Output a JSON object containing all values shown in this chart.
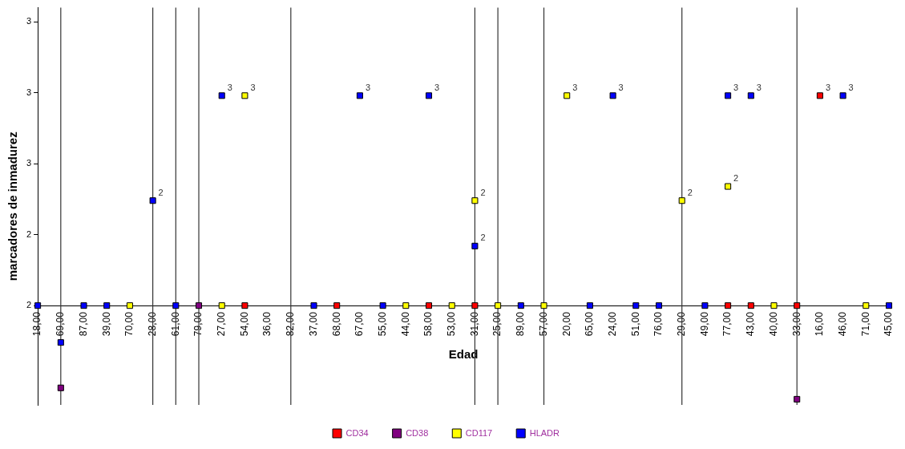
{
  "chart_data": {
    "type": "scatter",
    "xlabel": "Edad",
    "ylabel": "marcadores de inmadurez",
    "categories": [
      "18,00",
      "69,00",
      "87,00",
      "39,00",
      "70,00",
      "28,00",
      "61,00",
      "79,00",
      "27,00",
      "54,00",
      "36,00",
      "82,00",
      "37,00",
      "68,00",
      "67,00",
      "55,00",
      "44,00",
      "58,00",
      "53,00",
      "31,00",
      "25,00",
      "89,00",
      "57,00",
      "20,00",
      "65,00",
      "24,00",
      "51,00",
      "76,00",
      "29,00",
      "49,00",
      "77,00",
      "43,00",
      "40,00",
      "33,00",
      "16,00",
      "46,00",
      "71,00",
      "45,00"
    ],
    "series": [
      {
        "name": "CD34",
        "color": "#ff0000",
        "values": [
          null,
          null,
          null,
          null,
          null,
          null,
          null,
          null,
          null,
          2,
          null,
          null,
          null,
          2,
          null,
          null,
          null,
          2,
          null,
          2,
          null,
          null,
          null,
          null,
          null,
          null,
          null,
          null,
          null,
          null,
          2,
          2,
          null,
          2,
          2.74,
          null,
          null,
          null
        ],
        "value_labels": [
          null,
          null,
          null,
          null,
          null,
          null,
          null,
          null,
          null,
          null,
          null,
          null,
          null,
          null,
          null,
          null,
          null,
          null,
          null,
          null,
          null,
          null,
          null,
          null,
          null,
          null,
          null,
          null,
          null,
          null,
          null,
          null,
          null,
          null,
          "3",
          null,
          null,
          null
        ]
      },
      {
        "name": "CD38",
        "color": "#800080",
        "values": [
          null,
          1.71,
          null,
          null,
          null,
          null,
          null,
          2,
          null,
          null,
          null,
          null,
          null,
          null,
          null,
          null,
          null,
          null,
          null,
          null,
          null,
          null,
          null,
          null,
          null,
          null,
          null,
          null,
          null,
          null,
          null,
          null,
          null,
          1.67,
          null,
          null,
          null,
          null
        ]
      },
      {
        "name": "CD117",
        "color": "#ffff00",
        "values": [
          null,
          null,
          null,
          null,
          2,
          null,
          null,
          null,
          2,
          2.74,
          null,
          null,
          null,
          null,
          null,
          null,
          2,
          null,
          2,
          2.37,
          2,
          null,
          2,
          2.74,
          null,
          null,
          null,
          null,
          2.37,
          null,
          2.42,
          null,
          2,
          null,
          null,
          null,
          2,
          null
        ],
        "value_labels": [
          null,
          null,
          null,
          null,
          null,
          null,
          null,
          null,
          null,
          "3",
          null,
          null,
          null,
          null,
          null,
          null,
          null,
          null,
          null,
          "2",
          null,
          null,
          null,
          "3",
          null,
          null,
          null,
          null,
          "2",
          null,
          "2",
          null,
          null,
          null,
          null,
          null,
          null,
          null
        ]
      },
      {
        "name": "HLADR",
        "color": "#0000ff",
        "values": [
          2,
          1.87,
          2,
          2,
          null,
          2.37,
          2,
          null,
          2.74,
          null,
          null,
          null,
          2,
          null,
          2.74,
          2,
          null,
          2.74,
          null,
          2.21,
          null,
          2,
          null,
          null,
          2,
          2.74,
          2,
          2,
          null,
          2,
          2.74,
          2.74,
          null,
          null,
          null,
          2.74,
          null,
          2
        ],
        "value_labels": [
          null,
          null,
          null,
          null,
          null,
          "2",
          null,
          null,
          "3",
          null,
          null,
          null,
          null,
          null,
          "3",
          null,
          null,
          "3",
          null,
          "2",
          null,
          null,
          null,
          null,
          null,
          "3",
          null,
          null,
          null,
          null,
          "3",
          "3",
          null,
          null,
          null,
          "3",
          null,
          null
        ]
      }
    ],
    "ylim": [
      1.65,
      3.05
    ],
    "yticks": [
      {
        "value": 2,
        "label": "2"
      },
      {
        "value": 2.25,
        "label": "2"
      },
      {
        "value": 2.5,
        "label": "3"
      },
      {
        "value": 2.75,
        "label": "3"
      },
      {
        "value": 3,
        "label": "3"
      }
    ],
    "ref_lines": [
      {
        "axis": "x",
        "value": "69,00",
        "color": "#333333"
      },
      {
        "axis": "x",
        "value": "28,00",
        "color": "#333333"
      },
      {
        "axis": "x",
        "value": "61,00",
        "color": "#333333"
      },
      {
        "axis": "x",
        "value": "79,00",
        "color": "#333333"
      },
      {
        "axis": "x",
        "value": "82,00",
        "color": "#333333"
      },
      {
        "axis": "x",
        "value": "31,00",
        "color": "#333333"
      },
      {
        "axis": "x",
        "value": "25,00",
        "color": "#333333"
      },
      {
        "axis": "x",
        "value": "57,00",
        "color": "#333333"
      },
      {
        "axis": "x",
        "value": "29,00",
        "color": "#333333"
      },
      {
        "axis": "x",
        "value": "33,00",
        "color": "#333333"
      }
    ],
    "marker": "square",
    "grid": false,
    "legend": "bottom"
  }
}
